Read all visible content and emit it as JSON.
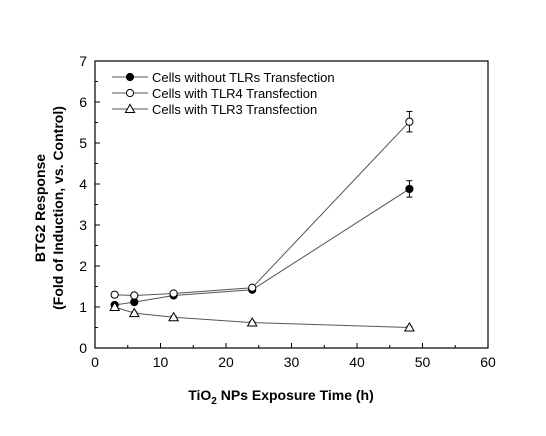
{
  "chart_data": {
    "type": "line",
    "xlabel_main": "TiO",
    "xlabel_sub": "2",
    "xlabel_rest": " NPs Exposure Time (h)",
    "ylabel_line1": "BTG2 Response",
    "ylabel_line2": "(Fold of Induction, vs. Control)",
    "xlim": [
      0,
      60
    ],
    "ylim": [
      0,
      7
    ],
    "xticks": [
      0,
      10,
      20,
      30,
      40,
      50,
      60
    ],
    "yticks": [
      0,
      1,
      2,
      3,
      4,
      5,
      6,
      7
    ],
    "grid": false,
    "legend_position": "top-left",
    "series": [
      {
        "name": "Cells without TLRs Transfection",
        "marker": "filled-circle",
        "x": [
          3,
          6,
          12,
          24,
          48
        ],
        "y": [
          1.05,
          1.12,
          1.28,
          1.42,
          3.88
        ],
        "err": [
          0.04,
          0.04,
          0.04,
          0.04,
          0.2
        ]
      },
      {
        "name": "Cells with TLR4 Transfection",
        "marker": "open-circle",
        "x": [
          3,
          6,
          12,
          24,
          48
        ],
        "y": [
          1.3,
          1.28,
          1.33,
          1.47,
          5.52
        ],
        "err": [
          0.06,
          0.04,
          0.04,
          0.04,
          0.25
        ]
      },
      {
        "name": "Cells with TLR3 Transfection",
        "marker": "open-triangle",
        "x": [
          3,
          6,
          12,
          24,
          48
        ],
        "y": [
          1.0,
          0.85,
          0.75,
          0.62,
          0.5
        ],
        "err": [
          0.08,
          0.03,
          0.03,
          0.03,
          0.03
        ]
      }
    ]
  }
}
